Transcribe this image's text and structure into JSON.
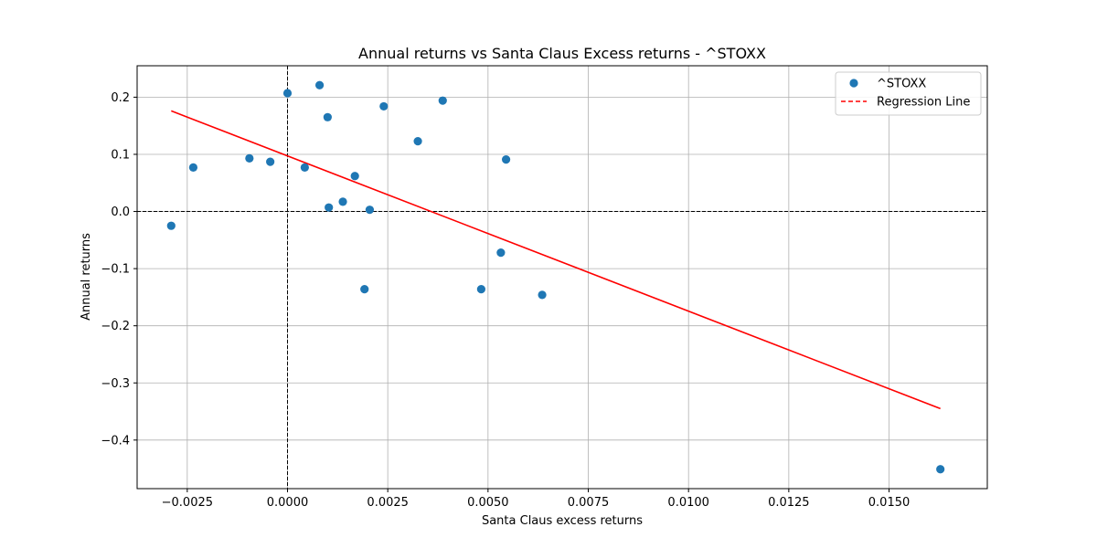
{
  "chart_data": {
    "type": "scatter",
    "title": "Annual returns vs Santa Claus Excess returns - ^STOXX",
    "xlabel": "Santa Claus excess returns",
    "ylabel": "Annual returns",
    "xlim": [
      -0.00375,
      0.01745
    ],
    "ylim": [
      -0.485,
      0.255
    ],
    "xticks": [
      -0.0025,
      0.0,
      0.0025,
      0.005,
      0.0075,
      0.01,
      0.0125,
      0.015
    ],
    "xtick_labels": [
      "−0.0025",
      "0.0000",
      "0.0025",
      "0.0050",
      "0.0075",
      "0.0100",
      "0.0125",
      "0.0150"
    ],
    "yticks": [
      -0.4,
      -0.3,
      -0.2,
      -0.1,
      0.0,
      0.1,
      0.2
    ],
    "ytick_labels": [
      "−0.4",
      "−0.3",
      "−0.2",
      "−0.1",
      "0.0",
      "0.1",
      "0.2"
    ],
    "grid": true,
    "legend_position": "top-right",
    "series": [
      {
        "name": "^STOXX",
        "kind": "scatter",
        "color": "#1f77b4",
        "points": [
          [
            -0.0029,
            -0.025
          ],
          [
            -0.00235,
            0.077
          ],
          [
            -0.00095,
            0.093
          ],
          [
            -0.00043,
            0.087
          ],
          [
            0.0,
            0.207
          ],
          [
            0.00043,
            0.077
          ],
          [
            0.0008,
            0.221
          ],
          [
            0.001,
            0.165
          ],
          [
            0.00103,
            0.007
          ],
          [
            0.00138,
            0.017
          ],
          [
            0.00168,
            0.062
          ],
          [
            0.00192,
            -0.136
          ],
          [
            0.00205,
            0.003
          ],
          [
            0.0024,
            0.184
          ],
          [
            0.00325,
            0.123
          ],
          [
            0.00387,
            0.194
          ],
          [
            0.00483,
            -0.136
          ],
          [
            0.00532,
            -0.072
          ],
          [
            0.00545,
            0.091
          ],
          [
            0.00635,
            -0.146
          ],
          [
            0.01628,
            -0.451
          ]
        ]
      },
      {
        "name": "Regression Line",
        "kind": "line",
        "color": "#ff0000",
        "dashed": true,
        "points": [
          [
            -0.0029,
            0.176
          ],
          [
            0.01628,
            -0.345
          ]
        ]
      }
    ],
    "reference_lines": [
      {
        "axis": "x",
        "value": 0.0,
        "color": "#000000"
      },
      {
        "axis": "y",
        "value": 0.0,
        "color": "#000000"
      }
    ]
  }
}
